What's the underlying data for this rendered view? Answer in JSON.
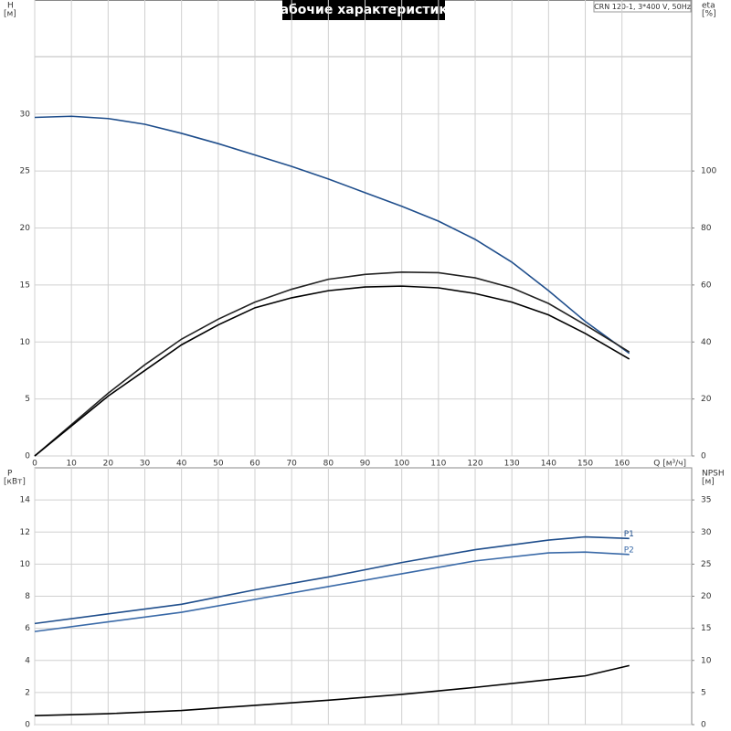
{
  "chart_data": [
    {
      "type": "line",
      "title": "Рабочие характеристики",
      "annotation": "CRN 120-1, 3*400 V, 50Hz",
      "ylabel": "H",
      "yunit": "[м]",
      "y2label": "eta",
      "y2unit": "[%]",
      "xlabel": "Q [м³/ч]",
      "x": [
        0,
        10,
        20,
        30,
        40,
        50,
        60,
        70,
        80,
        90,
        100,
        110,
        120,
        130,
        140,
        150,
        162
      ],
      "xlim": [
        0,
        179
      ],
      "xticks": [
        0,
        10,
        20,
        30,
        40,
        50,
        60,
        70,
        80,
        90,
        100,
        110,
        120,
        130,
        140,
        150,
        160
      ],
      "ylim": [
        0,
        40
      ],
      "yticks": [
        0,
        5,
        10,
        15,
        20,
        25,
        30
      ],
      "y2lim": [
        0,
        160
      ],
      "y2ticks": [
        0,
        20,
        40,
        60,
        80,
        100
      ],
      "grid": true,
      "xtick_labels": true,
      "series": [
        {
          "color": "#1f4e8c",
          "values": [
            29.7,
            29.8,
            29.6,
            29.1,
            28.3,
            27.4,
            26.4,
            25.4,
            24.3,
            23.1,
            21.9,
            20.6,
            19.0,
            17.0,
            14.5,
            11.8,
            9.0
          ]
        },
        {
          "color": "#222222",
          "axis": "y2",
          "values": [
            0,
            11,
            22,
            32,
            41,
            48,
            54,
            58.5,
            62,
            63.7,
            64.5,
            64.3,
            62.5,
            59,
            53.5,
            46,
            36.5
          ]
        },
        {
          "color": "#000000",
          "axis": "y2",
          "values": [
            0,
            10.5,
            21,
            30,
            39,
            46,
            52,
            55.5,
            58,
            59.3,
            59.6,
            59,
            57,
            54,
            49.5,
            43,
            34
          ]
        }
      ]
    },
    {
      "type": "line",
      "ylabel": "P",
      "yunit": "[кВт]",
      "y2label": "NPSH",
      "y2unit": "[м]",
      "x": [
        0,
        20,
        40,
        60,
        80,
        100,
        120,
        140,
        150,
        162
      ],
      "xlim": [
        0,
        179
      ],
      "xticks": [
        0,
        10,
        20,
        30,
        40,
        50,
        60,
        70,
        80,
        90,
        100,
        110,
        120,
        130,
        140,
        150,
        160
      ],
      "ylim": [
        0,
        16
      ],
      "yticks": [
        0,
        2,
        4,
        6,
        8,
        10,
        12,
        14
      ],
      "y2lim": [
        0,
        40
      ],
      "y2ticks": [
        0,
        5,
        10,
        15,
        20,
        25,
        30,
        35
      ],
      "grid": true,
      "xtick_labels": false,
      "series": [
        {
          "name": "P1",
          "color": "#1f4e8c",
          "values": [
            6.3,
            6.9,
            7.5,
            8.4,
            9.2,
            10.1,
            10.9,
            11.5,
            11.7,
            11.6
          ]
        },
        {
          "name": "P2",
          "color": "#3a6aa8",
          "values": [
            5.8,
            6.4,
            7.0,
            7.8,
            8.6,
            9.4,
            10.2,
            10.7,
            10.75,
            10.6
          ]
        },
        {
          "color": "#000000",
          "axis": "y2",
          "values": [
            1.4,
            1.7,
            2.2,
            3.0,
            3.8,
            4.7,
            5.8,
            7.0,
            7.6,
            9.2
          ]
        }
      ]
    }
  ]
}
